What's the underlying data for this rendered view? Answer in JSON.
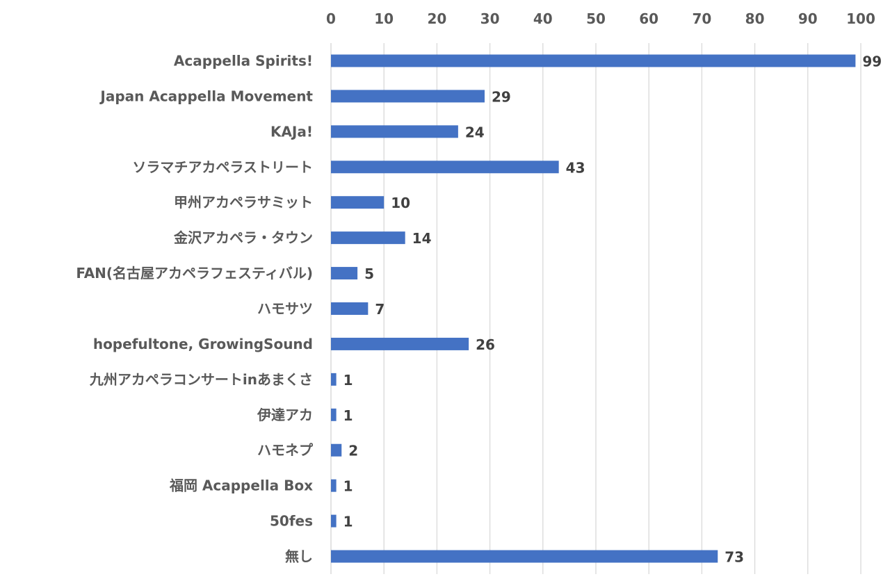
{
  "chart_data": {
    "type": "bar",
    "orientation": "horizontal",
    "title": "",
    "xlabel": "",
    "ylabel": "",
    "xlim": [
      0,
      100
    ],
    "x_ticks": [
      0,
      10,
      20,
      30,
      40,
      50,
      60,
      70,
      80,
      90,
      100
    ],
    "x_axis_position": "top",
    "grid": true,
    "bar_color": "#4472c4",
    "categories": [
      "Acappella Spirits!",
      "Japan Acappella Movement",
      "KAJa!",
      "ソラマチアカペラストリート",
      "甲州アカペラサミット",
      "金沢アカペラ・タウン",
      "FAN(名古屋アカペラフェスティバル)",
      "ハモサツ",
      "hopefultone, GrowingSound",
      "九州アカペラコンサートinあまくさ",
      "伊達アカ",
      "ハモネプ",
      "福岡 Acappella Box",
      "50fes",
      "無し"
    ],
    "values": [
      99,
      29,
      24,
      43,
      10,
      14,
      5,
      7,
      26,
      1,
      1,
      2,
      1,
      1,
      73
    ]
  }
}
